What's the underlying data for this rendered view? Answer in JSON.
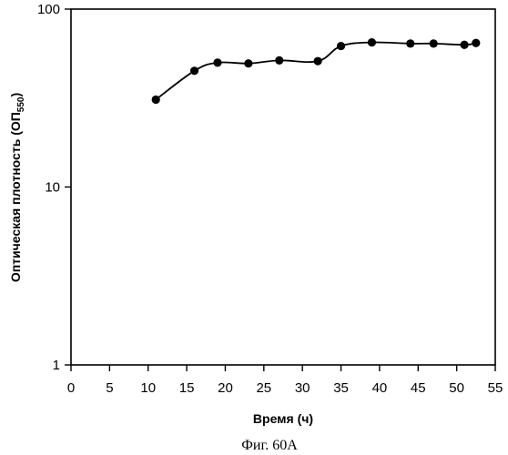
{
  "chart_data": {
    "type": "line",
    "title": "",
    "xlabel": "Время (ч)",
    "ylabel_main": "Оптическая плотность (ОП",
    "ylabel_sub": "550",
    "ylabel_close": ")",
    "xlim": [
      0,
      55
    ],
    "ylim": [
      1,
      100
    ],
    "y_scale": "log",
    "grid": false,
    "legend": "none",
    "x_ticks": [
      "0",
      "5",
      "10",
      "15",
      "20",
      "25",
      "30",
      "35",
      "40",
      "45",
      "50",
      "55"
    ],
    "y_ticks": [
      "1",
      "10",
      "100"
    ],
    "series": [
      {
        "x": [
          11,
          16,
          19,
          23,
          27,
          32,
          35,
          39,
          44,
          47,
          51,
          52.5
        ],
        "y": [
          31,
          45,
          50,
          49.5,
          51.5,
          51,
          62,
          65,
          64,
          64,
          63,
          64.5
        ]
      }
    ],
    "colors": {
      "line": "#000000",
      "marker": "#000000",
      "background": "#ffffff"
    }
  },
  "caption": "Фиг. 60А"
}
